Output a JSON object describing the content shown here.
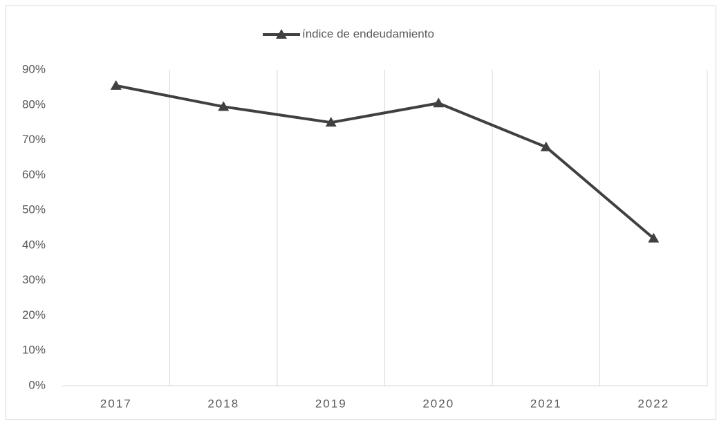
{
  "chart_data": {
    "type": "line",
    "categories": [
      "2017",
      "2018",
      "2019",
      "2020",
      "2021",
      "2022"
    ],
    "series": [
      {
        "name": "índice de endeudamiento",
        "color": "#404040",
        "values": [
          85.5,
          79.5,
          75,
          80.5,
          68,
          42
        ]
      }
    ],
    "ylim": [
      0,
      90
    ],
    "yticks": [
      {
        "value": 0,
        "label": "0%"
      },
      {
        "value": 10,
        "label": "10%"
      },
      {
        "value": 20,
        "label": "20%"
      },
      {
        "value": 30,
        "label": "30%"
      },
      {
        "value": 40,
        "label": "40%"
      },
      {
        "value": 50,
        "label": "50%"
      },
      {
        "value": 60,
        "label": "60%"
      },
      {
        "value": 70,
        "label": "70%"
      },
      {
        "value": 80,
        "label": "80%"
      },
      {
        "value": 90,
        "label": "90%"
      }
    ],
    "legend": "top"
  }
}
